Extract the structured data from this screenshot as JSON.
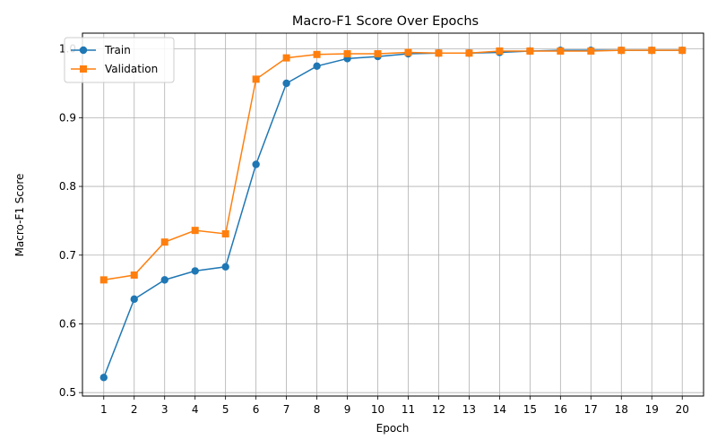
{
  "chart_data": {
    "type": "line",
    "title": "Macro-F1 Score Over Epochs",
    "xlabel": "Epoch",
    "ylabel": "Macro-F1 Score",
    "x": [
      1,
      2,
      3,
      4,
      5,
      6,
      7,
      8,
      9,
      10,
      11,
      12,
      13,
      14,
      15,
      16,
      17,
      18,
      19,
      20
    ],
    "xlim": [
      0.3,
      20.7
    ],
    "ylim": [
      0.495,
      1.023
    ],
    "yticks": [
      0.5,
      0.6,
      0.7,
      0.8,
      0.9,
      1.0
    ],
    "ytick_labels": [
      "0.5",
      "0.6",
      "0.7",
      "0.8",
      "0.9",
      "1.0"
    ],
    "grid": true,
    "legend_position": "top-left",
    "series": [
      {
        "name": "Train",
        "color": "#1f77b4",
        "marker": "circle",
        "values": [
          0.522,
          0.636,
          0.664,
          0.677,
          0.683,
          0.832,
          0.95,
          0.975,
          0.986,
          0.989,
          0.993,
          0.994,
          0.994,
          0.995,
          0.997,
          0.998,
          0.998,
          0.998,
          0.998,
          0.998
        ]
      },
      {
        "name": "Validation",
        "color": "#ff7f0e",
        "marker": "square",
        "values": [
          0.664,
          0.671,
          0.719,
          0.736,
          0.731,
          0.956,
          0.987,
          0.992,
          0.993,
          0.993,
          0.995,
          0.994,
          0.994,
          0.997,
          0.997,
          0.997,
          0.997,
          0.998,
          0.998,
          0.998
        ]
      }
    ]
  }
}
